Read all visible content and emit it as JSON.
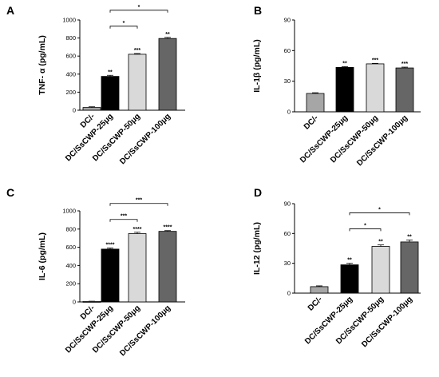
{
  "chart_data": [
    {
      "panel_label": "A",
      "type": "bar",
      "ylabel": "TNF- α (pg/mL)",
      "ylim": [
        0,
        1000
      ],
      "yticks": [
        "0",
        "200",
        "400",
        "600",
        "800",
        "1000"
      ],
      "categories": [
        "DC/-",
        "DC/SsCWP-25μg",
        "DC/SsCWP-50μg",
        "DC/SsCWP-100μg"
      ],
      "values": [
        30,
        375,
        620,
        795
      ],
      "errors": [
        8,
        12,
        8,
        12
      ],
      "bar_colors": [
        "#a6a6a6",
        "#000000",
        "#d9d9d9",
        "#666666"
      ],
      "significance": [
        "",
        "**",
        "***",
        "**"
      ],
      "comparisons": [
        {
          "from": 1,
          "to": 2,
          "label": "*"
        },
        {
          "from": 1,
          "to": 3,
          "label": "*"
        }
      ]
    },
    {
      "panel_label": "B",
      "type": "bar",
      "ylabel": "IL-1β (pg/mL)",
      "ylim": [
        0,
        90
      ],
      "yticks": [
        "0",
        "30",
        "60",
        "90"
      ],
      "categories": [
        "DC/-",
        "DC/SsCWP-25μg",
        "DC/SsCWP-50μg",
        "DC/SsCWP-100μg"
      ],
      "values": [
        18,
        43.5,
        47,
        43
      ],
      "errors": [
        0.7,
        0.8,
        0.5,
        0.8
      ],
      "bar_colors": [
        "#a6a6a6",
        "#000000",
        "#d9d9d9",
        "#666666"
      ],
      "significance": [
        "",
        "**",
        "***",
        "***"
      ],
      "comparisons": []
    },
    {
      "panel_label": "C",
      "type": "bar",
      "ylabel": "IL-6 (pg/mL)",
      "ylim": [
        0,
        1000
      ],
      "yticks": [
        "0",
        "200",
        "400",
        "600",
        "800",
        "1000"
      ],
      "categories": [
        "DC/-",
        "DC/SsCWP-25μg",
        "DC/SsCWP-50μg",
        "DC/SsCWP-100μg"
      ],
      "values": [
        5,
        580,
        750,
        775
      ],
      "errors": [
        3,
        12,
        15,
        8
      ],
      "bar_colors": [
        "#a6a6a6",
        "#000000",
        "#d9d9d9",
        "#666666"
      ],
      "significance": [
        "",
        "****",
        "****",
        "****"
      ],
      "comparisons": [
        {
          "from": 1,
          "to": 2,
          "label": "***"
        },
        {
          "from": 1,
          "to": 3,
          "label": "***"
        }
      ]
    },
    {
      "panel_label": "D",
      "type": "bar",
      "ylabel": "IL-12 (pg/mL)",
      "ylim": [
        0,
        90
      ],
      "yticks": [
        "0",
        "30",
        "60",
        "90"
      ],
      "categories": [
        "DC/-",
        "DC/SsCWP-25μg",
        "DC/SsCWP-50μg",
        "DC/SsCWP-100μg"
      ],
      "values": [
        6.5,
        28.5,
        47,
        51.5
      ],
      "errors": [
        0.8,
        1.5,
        1.5,
        2
      ],
      "bar_colors": [
        "#a6a6a6",
        "#000000",
        "#d9d9d9",
        "#666666"
      ],
      "significance": [
        "",
        "**",
        "**",
        "**"
      ],
      "comparisons": [
        {
          "from": 1,
          "to": 2,
          "label": "*"
        },
        {
          "from": 1,
          "to": 3,
          "label": "*"
        }
      ]
    }
  ]
}
